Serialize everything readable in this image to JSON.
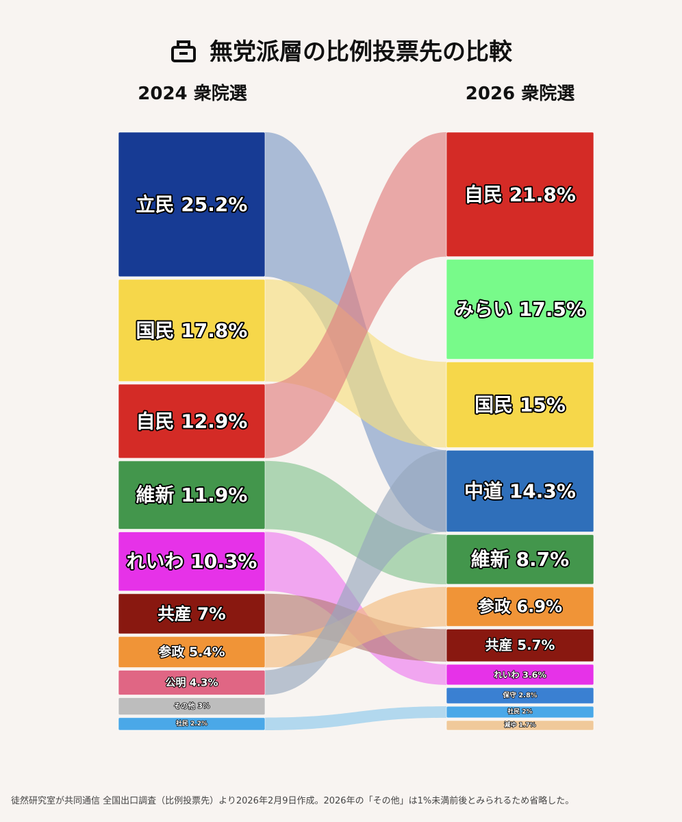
{
  "header": {
    "title": "無党派層の比例投票先の比較",
    "left_label": "2024 衆院選",
    "right_label": "2026 衆院選"
  },
  "footer": {
    "note": "徒然研究室が共同通信 全国出口調査（比例投票先）より2026年2月9日作成。2026年の「その他」は1%未満前後とみられるため省略した。"
  },
  "chart_data": {
    "type": "sankey",
    "unit": "%",
    "left": [
      {
        "name": "立民",
        "value": 25.2,
        "color": "#173b94"
      },
      {
        "name": "国民",
        "value": 17.8,
        "color": "#f6d74a"
      },
      {
        "name": "自民",
        "value": 12.9,
        "color": "#d42b26"
      },
      {
        "name": "維新",
        "value": 11.9,
        "color": "#43964c"
      },
      {
        "name": "れいわ",
        "value": 10.3,
        "color": "#e632e8"
      },
      {
        "name": "共産",
        "value": 7,
        "color": "#891810"
      },
      {
        "name": "参政",
        "value": 5.4,
        "color": "#f09437"
      },
      {
        "name": "公明",
        "value": 4.3,
        "color": "#e06684"
      },
      {
        "name": "その他",
        "value": 3,
        "color": "#bdbdbd"
      },
      {
        "name": "社民",
        "value": 2.2,
        "color": "#4aa8e8"
      }
    ],
    "right": [
      {
        "name": "自民",
        "value": 21.8,
        "color": "#d42b26"
      },
      {
        "name": "みらい",
        "value": 17.5,
        "color": "#78fa8a"
      },
      {
        "name": "国民",
        "value": 15,
        "color": "#f6d74a"
      },
      {
        "name": "中道",
        "value": 14.3,
        "color": "#2f6fba"
      },
      {
        "name": "維新",
        "value": 8.7,
        "color": "#43964c"
      },
      {
        "name": "参政",
        "value": 6.9,
        "color": "#f09437"
      },
      {
        "name": "共産",
        "value": 5.7,
        "color": "#891810"
      },
      {
        "name": "れいわ",
        "value": 3.6,
        "color": "#e632e8"
      },
      {
        "name": "保守",
        "value": 2.8,
        "color": "#3a80d2"
      },
      {
        "name": "社民",
        "value": 2,
        "color": "#4aa8e8"
      },
      {
        "name": "減ゆ",
        "value": 1.7,
        "color": "#f0c99a"
      }
    ],
    "flows": [
      {
        "from": "立民",
        "to": "中道",
        "color": "#7f9cc8"
      },
      {
        "from": "国民",
        "to": "国民",
        "color": "#f6df80"
      },
      {
        "from": "自民",
        "to": "自民",
        "color": "#e08080"
      },
      {
        "from": "維新",
        "to": "維新",
        "color": "#85c492"
      },
      {
        "from": "れいわ",
        "to": "れいわ",
        "color": "#ec7df0"
      },
      {
        "from": "共産",
        "to": "共産",
        "color": "#b57c74"
      },
      {
        "from": "参政",
        "to": "参政",
        "color": "#f3bd80"
      },
      {
        "from": "公明",
        "to": "中道",
        "color": "#96a7bd"
      },
      {
        "from": "社民",
        "to": "社民",
        "color": "#8ccaec"
      }
    ]
  }
}
